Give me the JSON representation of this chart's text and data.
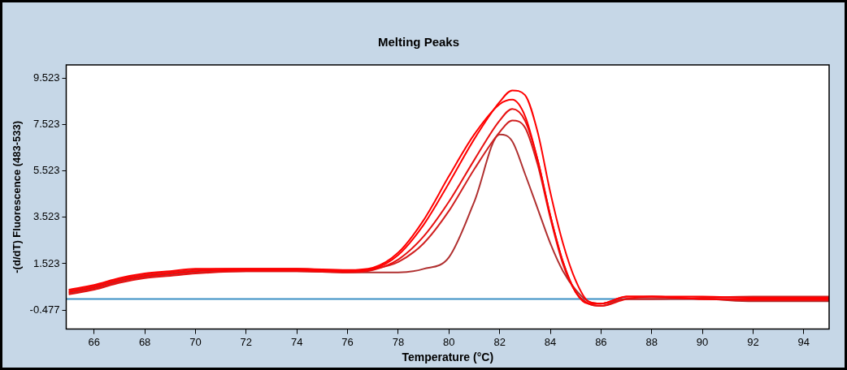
{
  "chart_data": {
    "type": "line",
    "title": "Melting Peaks",
    "xlabel": "Temperature (°C)",
    "ylabel": "-(d/dT) Fluorescence (483-533)",
    "x": [
      65,
      66,
      67,
      68,
      69,
      70,
      72,
      74,
      76,
      77,
      78,
      79,
      80,
      81,
      82,
      82.5,
      83,
      83.5,
      84,
      84.5,
      85,
      85.5,
      86,
      87,
      88,
      90,
      92,
      95
    ],
    "series": [
      {
        "color": "#ff0000",
        "values": [
          0.3,
          0.5,
          0.8,
          1.0,
          1.1,
          1.2,
          1.25,
          1.25,
          1.2,
          1.3,
          1.9,
          3.2,
          5.0,
          6.9,
          8.5,
          9.0,
          8.8,
          7.2,
          4.6,
          2.4,
          0.8,
          -0.1,
          -0.2,
          0.1,
          0.1,
          0.1,
          0.05,
          0.05
        ]
      },
      {
        "color": "#ff0000",
        "values": [
          0.4,
          0.6,
          0.9,
          1.1,
          1.2,
          1.3,
          1.3,
          1.3,
          1.25,
          1.35,
          2.0,
          3.4,
          5.3,
          7.1,
          8.4,
          8.6,
          7.9,
          6.0,
          3.6,
          1.6,
          0.3,
          -0.2,
          -0.2,
          0.1,
          0.1,
          0.0,
          0.0,
          0.0
        ]
      },
      {
        "color": "#e81010",
        "values": [
          0.2,
          0.4,
          0.7,
          0.9,
          1.0,
          1.1,
          1.2,
          1.2,
          1.15,
          1.25,
          1.7,
          2.7,
          4.2,
          6.0,
          7.7,
          8.2,
          7.7,
          6.0,
          3.6,
          1.6,
          0.3,
          -0.2,
          -0.3,
          0.0,
          0.1,
          0.0,
          -0.05,
          -0.05
        ]
      },
      {
        "color": "#d02020",
        "values": [
          0.35,
          0.55,
          0.85,
          1.05,
          1.15,
          1.25,
          1.3,
          1.3,
          1.2,
          1.3,
          1.6,
          2.4,
          3.8,
          5.6,
          7.2,
          7.7,
          7.4,
          5.8,
          3.5,
          1.5,
          0.3,
          -0.2,
          -0.3,
          0.0,
          0.0,
          0.05,
          0.1,
          0.1
        ]
      },
      {
        "color": "#b03030",
        "values": [
          0.25,
          0.45,
          0.75,
          0.95,
          1.05,
          1.15,
          1.2,
          1.2,
          1.15,
          1.15,
          1.15,
          1.3,
          1.8,
          4.2,
          7.1,
          6.8,
          5.4,
          3.9,
          2.4,
          1.2,
          0.4,
          -0.1,
          -0.2,
          0.0,
          0.0,
          0.0,
          -0.1,
          -0.1
        ]
      }
    ],
    "xlim": [
      64.9,
      95
    ],
    "xticks": [
      66,
      68,
      70,
      72,
      74,
      76,
      78,
      80,
      82,
      84,
      86,
      88,
      90,
      92,
      94
    ],
    "ylim": [
      -1.3,
      10.1
    ],
    "yticks": [
      -0.477,
      1.523,
      3.523,
      5.523,
      7.523,
      9.523
    ],
    "ref_lines": [
      {
        "axis": "y",
        "value": 0,
        "color": "#3a8fc4"
      }
    ],
    "grid": false,
    "legend": false,
    "marker": "none",
    "line_style": "solid"
  }
}
